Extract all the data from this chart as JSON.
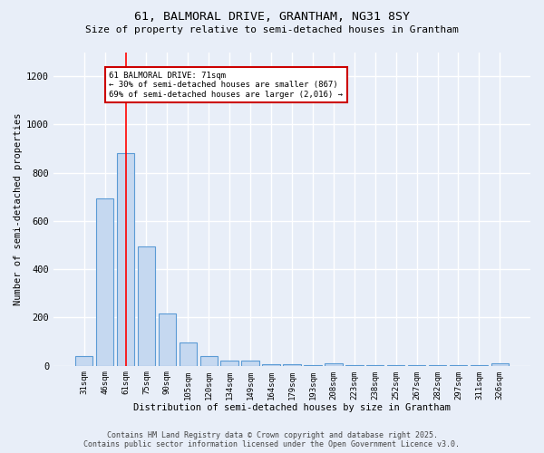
{
  "title1": "61, BALMORAL DRIVE, GRANTHAM, NG31 8SY",
  "title2": "Size of property relative to semi-detached houses in Grantham",
  "xlabel": "Distribution of semi-detached houses by size in Grantham",
  "ylabel": "Number of semi-detached properties",
  "categories": [
    "31sqm",
    "46sqm",
    "61sqm",
    "75sqm",
    "90sqm",
    "105sqm",
    "120sqm",
    "134sqm",
    "149sqm",
    "164sqm",
    "179sqm",
    "193sqm",
    "208sqm",
    "223sqm",
    "238sqm",
    "252sqm",
    "267sqm",
    "282sqm",
    "297sqm",
    "311sqm",
    "326sqm"
  ],
  "values": [
    40,
    693,
    880,
    493,
    215,
    98,
    42,
    22,
    20,
    5,
    5,
    2,
    10,
    2,
    2,
    2,
    2,
    2,
    2,
    2,
    10
  ],
  "bar_color": "#c5d8f0",
  "bar_edge_color": "#5b9bd5",
  "bg_color": "#e8eef8",
  "grid_color": "#ffffff",
  "red_line_x": 2,
  "annotation_text": "61 BALMORAL DRIVE: 71sqm\n← 30% of semi-detached houses are smaller (867)\n69% of semi-detached houses are larger (2,016) →",
  "annotation_box_color": "#ffffff",
  "annotation_box_edge": "#cc0000",
  "footer1": "Contains HM Land Registry data © Crown copyright and database right 2025.",
  "footer2": "Contains public sector information licensed under the Open Government Licence v3.0.",
  "ylim": [
    0,
    1300
  ],
  "yticks": [
    0,
    200,
    400,
    600,
    800,
    1000,
    1200
  ]
}
